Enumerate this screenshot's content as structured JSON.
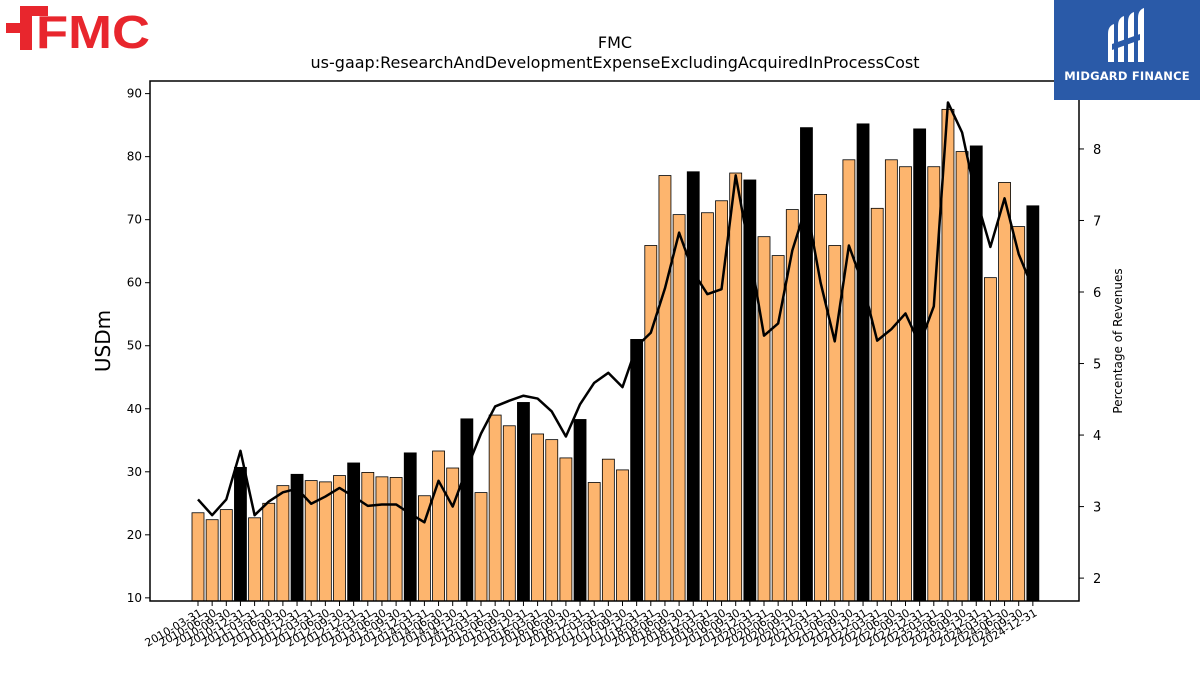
{
  "logos": {
    "left_text": "FMC",
    "right_text": "MIDGARD FINANCE"
  },
  "colors": {
    "bar_normal": "#fdb56e",
    "bar_q4": "#000000",
    "line": "#000000",
    "fmc_red": "#e8262d",
    "midgard_blue": "#2a5aa8"
  },
  "chart_data": {
    "type": "bar",
    "title": "FMC",
    "subtitle": "us-gaap:ResearchAndDevelopmentExpenseExcludingAcquiredInProcessCost",
    "ylabel": "USDm",
    "y2label": "Percentage of Revenues",
    "ylim": [
      9.5,
      92
    ],
    "y2lim": [
      1.68,
      8.95
    ],
    "yticks": [
      10,
      20,
      30,
      40,
      50,
      60,
      70,
      80,
      90
    ],
    "y2ticks": [
      2,
      3,
      4,
      5,
      6,
      7,
      8
    ],
    "categories": [
      "2010-03-31",
      "2010-06-30",
      "2010-09-30",
      "2010-12-31",
      "2011-03-31",
      "2011-06-30",
      "2011-09-30",
      "2011-12-31",
      "2012-03-31",
      "2012-06-30",
      "2012-09-30",
      "2012-12-31",
      "2013-03-31",
      "2013-06-30",
      "2013-09-30",
      "2013-12-31",
      "2014-03-31",
      "2014-06-30",
      "2014-09-30",
      "2014-12-31",
      "2015-03-31",
      "2015-06-30",
      "2015-09-30",
      "2015-12-31",
      "2016-03-31",
      "2016-06-30",
      "2016-09-30",
      "2016-12-31",
      "2017-03-31",
      "2017-06-30",
      "2017-09-30",
      "2017-12-31",
      "2018-03-31",
      "2018-06-30",
      "2018-09-30",
      "2018-12-31",
      "2019-03-31",
      "2019-06-30",
      "2019-09-30",
      "2019-12-31",
      "2020-03-31",
      "2020-06-30",
      "2020-09-30",
      "2020-12-31",
      "2021-03-31",
      "2021-06-30",
      "2021-09-30",
      "2021-12-31",
      "2022-03-31",
      "2022-06-30",
      "2022-09-30",
      "2022-12-31",
      "2023-03-31",
      "2023-06-30",
      "2023-09-30",
      "2023-12-31",
      "2024-03-31",
      "2024-06-30",
      "2024-09-30",
      "2024-12-31"
    ],
    "series": [
      {
        "values": [
          23.5,
          22.4,
          24.0,
          30.7,
          22.7,
          25.0,
          27.8,
          29.6,
          28.6,
          28.4,
          29.4,
          31.4,
          29.9,
          29.2,
          29.1,
          33.0,
          26.2,
          33.3,
          30.6,
          38.4,
          26.7,
          39.0,
          37.3,
          41.0,
          36.0,
          35.1,
          32.2,
          38.3,
          28.3,
          32.0,
          30.3,
          51.0,
          65.9,
          77.0,
          70.8,
          77.6,
          71.1,
          73.0,
          77.4,
          76.3,
          67.3,
          64.3,
          71.6,
          84.6,
          74.0,
          65.9,
          79.5,
          85.2,
          71.8,
          79.5,
          78.4,
          84.4,
          78.4,
          87.5,
          80.8,
          81.7,
          60.8,
          75.9,
          68.9,
          72.2
        ]
      },
      {
        "axis": "right",
        "values": [
          3.1,
          2.88,
          3.1,
          3.78,
          2.88,
          3.07,
          3.2,
          3.25,
          3.04,
          3.14,
          3.26,
          3.14,
          3.01,
          3.03,
          3.03,
          2.9,
          2.78,
          3.36,
          3.0,
          3.53,
          4.02,
          4.4,
          4.48,
          4.55,
          4.51,
          4.33,
          3.98,
          4.43,
          4.73,
          4.87,
          4.67,
          5.24,
          5.43,
          6.05,
          6.83,
          6.28,
          5.97,
          6.04,
          7.63,
          6.55,
          5.39,
          5.56,
          6.58,
          7.21,
          6.13,
          5.31,
          6.65,
          6.1,
          5.32,
          5.48,
          5.7,
          5.27,
          5.8,
          8.65,
          8.23,
          7.31,
          6.63,
          7.31,
          6.53,
          6.05
        ]
      }
    ]
  }
}
